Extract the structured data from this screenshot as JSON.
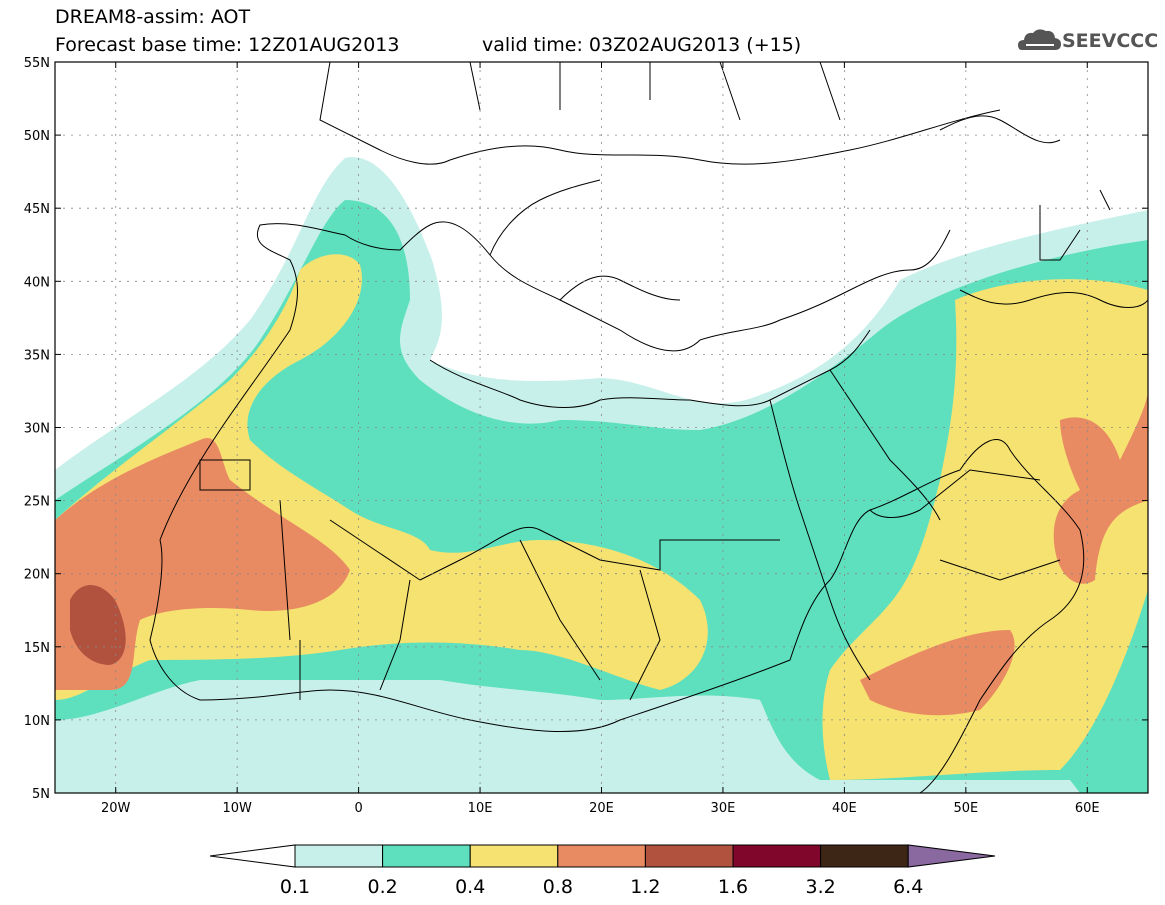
{
  "header": {
    "line1": "DREAM8-assim: AOT",
    "line2a": "Forecast base time: 12Z01AUG2013",
    "line2b": "valid time: 03Z02AUG2013 (+15)",
    "logo_text": "SEEVCCC"
  },
  "colors": {
    "c0": "#c8f0ea",
    "c1": "#5ee0be",
    "c2": "#f5e271",
    "c3": "#e98b62",
    "c4": "#b1523f",
    "c5": "#80072b",
    "c6": "#3e2617",
    "c7": "#8a68a0"
  },
  "map": {
    "lon_range": [
      -25,
      65
    ],
    "lat_range": [
      5,
      55
    ],
    "lat_ticks": [
      "55N",
      "50N",
      "45N",
      "40N",
      "35N",
      "30N",
      "25N",
      "20N",
      "15N",
      "10N",
      "5N"
    ],
    "lon_ticks": [
      "20W",
      "10W",
      "0",
      "10E",
      "20E",
      "30E",
      "40E",
      "50E",
      "60E"
    ]
  },
  "colorbar": {
    "labels": [
      "0.1",
      "0.2",
      "0.4",
      "0.8",
      "1.2",
      "1.6",
      "3.2",
      "6.4"
    ]
  }
}
